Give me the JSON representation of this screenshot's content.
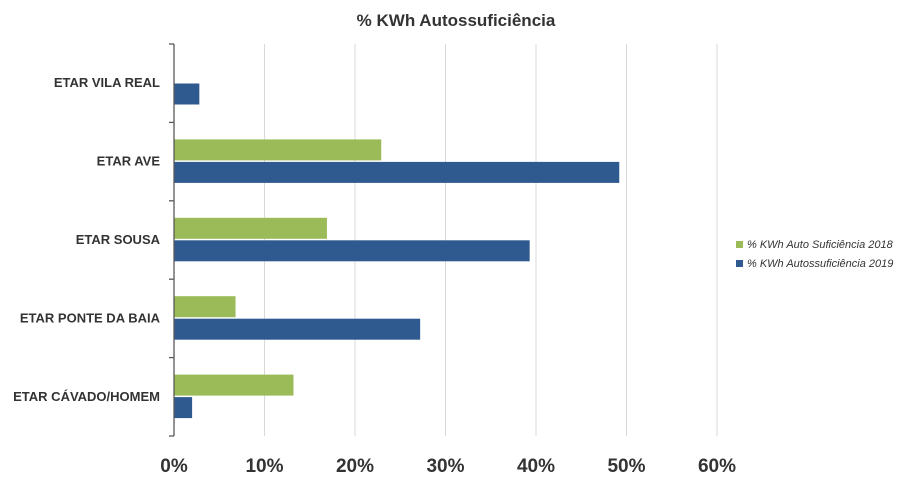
{
  "chart_data": {
    "type": "bar",
    "orientation": "horizontal",
    "title": "% KWh Autossuficiência",
    "xlabel": "",
    "ylabel": "",
    "categories": [
      "ETAR VILA REAL",
      "ETAR AVE",
      "ETAR SOUSA",
      "ETAR PONTE DA BAIA",
      "ETAR CÁVADO/HOMEM"
    ],
    "series": [
      {
        "name": "% KWh Auto Suficiência 2018",
        "color": "#9bbb59",
        "values": [
          0,
          22.9,
          16.9,
          6.8,
          13.2
        ]
      },
      {
        "name": "% KWh Autossuficiência 2019",
        "color": "#2f5a8f",
        "values": [
          2.8,
          49.2,
          39.3,
          27.2,
          2.0
        ]
      }
    ],
    "xlim": [
      0,
      60
    ],
    "xticks": [
      0,
      10,
      20,
      30,
      40,
      50,
      60
    ],
    "tick_labels": [
      "0%",
      "10%",
      "20%",
      "30%",
      "40%",
      "50%",
      "60%"
    ],
    "grid": true,
    "legend_position": "right"
  }
}
